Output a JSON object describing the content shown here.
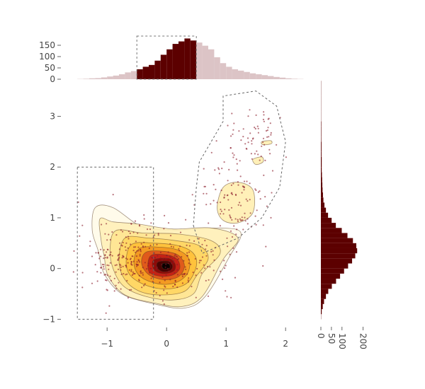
{
  "chart_data": {
    "type": "contour-scatter-histogram",
    "main": {
      "xlim": [
        -1.55,
        2.2
      ],
      "ylim": [
        -1.05,
        3.55
      ],
      "xticks": [
        -1,
        0,
        1,
        2
      ],
      "yticks": [
        -1,
        0,
        1,
        2,
        3
      ],
      "tick_labels_x": [
        "−1",
        "0",
        "1",
        "2"
      ],
      "tick_labels_y": [
        "−1",
        "0",
        "1",
        "2",
        "3"
      ],
      "grid": false,
      "density_peak": [
        -0.02,
        0.05
      ],
      "selection_boxes": [
        {
          "x": [
            -1.5,
            -0.22
          ],
          "y": [
            -1.0,
            2.0
          ]
        }
      ],
      "lasso_polygon": [
        [
          0.45,
          0.85
        ],
        [
          0.6,
          0.3
        ],
        [
          1.2,
          0.6
        ],
        [
          1.6,
          1.0
        ],
        [
          1.9,
          1.6
        ],
        [
          2.0,
          2.5
        ],
        [
          1.85,
          3.2
        ],
        [
          1.5,
          3.5
        ],
        [
          0.95,
          3.4
        ],
        [
          0.95,
          2.9
        ],
        [
          0.55,
          2.1
        ],
        [
          0.5,
          1.6
        ]
      ],
      "colorscale": [
        "#ffffff",
        "#fff0b0",
        "#ffd24d",
        "#f5a020",
        "#e0581a",
        "#c01e14",
        "#8a0a08",
        "#3a0000",
        "#000000"
      ]
    },
    "top_histogram": {
      "orientation": "vertical",
      "bin_width": 0.1,
      "bin_start": -1.5,
      "values": [
        1,
        2,
        4,
        5,
        8,
        12,
        16,
        22,
        30,
        36,
        44,
        55,
        63,
        82,
        108,
        132,
        156,
        167,
        180,
        171,
        162,
        148,
        132,
        97,
        71,
        55,
        44,
        38,
        32,
        26,
        22,
        18,
        14,
        10,
        7,
        4,
        2,
        1
      ],
      "selected_range": [
        -0.5,
        0.5
      ],
      "ylim": [
        0,
        200
      ],
      "yticks": [
        0,
        50,
        100,
        150
      ],
      "tick_labels_y": [
        "0",
        "50",
        "100",
        "150"
      ],
      "selected_color": "#5c0000",
      "unselected_color": "#dcc4c6"
    },
    "right_histogram": {
      "orientation": "horizontal",
      "bin_width": 0.1,
      "bin_start": -1.0,
      "values": [
        1,
        4,
        9,
        15,
        24,
        35,
        52,
        72,
        91,
        110,
        129,
        148,
        163,
        172,
        168,
        152,
        126,
        99,
        71,
        51,
        34,
        24,
        17,
        12,
        10,
        8,
        7,
        6,
        5,
        4,
        4,
        4,
        3,
        3,
        3,
        2,
        2,
        2,
        2,
        1,
        1,
        1,
        1,
        1,
        1,
        1,
        1
      ],
      "xlim": [
        0,
        225
      ],
      "xticks": [
        0,
        50,
        100,
        200
      ],
      "tick_labels_x": [
        "0",
        "50",
        "100",
        "200"
      ],
      "color": "#5c0000"
    }
  }
}
